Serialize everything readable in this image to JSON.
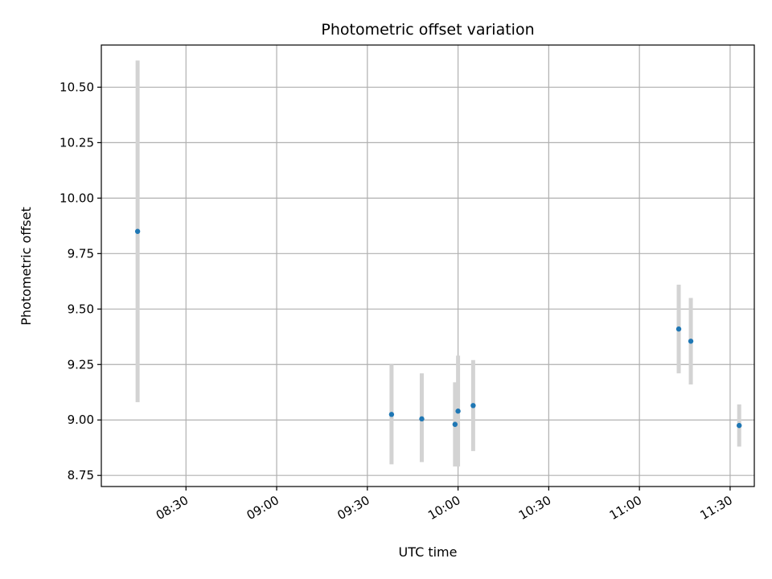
{
  "chart_data": {
    "type": "scatter",
    "title": "Photometric offset variation",
    "xlabel": "UTC time",
    "ylabel": "Photometric offset",
    "x_tick_labels": [
      "08:30",
      "09:00",
      "09:30",
      "10:00",
      "10:30",
      "11:00",
      "11:30"
    ],
    "y_tick_labels": [
      "8.75",
      "9.00",
      "9.25",
      "9.50",
      "9.75",
      "10.00",
      "10.25",
      "10.50"
    ],
    "y_ticks": [
      8.75,
      9.0,
      9.25,
      9.5,
      9.75,
      10.0,
      10.25,
      10.5
    ],
    "xlim": [
      "08:02",
      "11:38"
    ],
    "ylim": [
      8.7,
      10.69
    ],
    "grid": true,
    "points": [
      {
        "x": "08:14",
        "y": 9.85,
        "yerr_low": 9.08,
        "yerr_high": 10.62
      },
      {
        "x": "09:38",
        "y": 9.025,
        "yerr_low": 8.8,
        "yerr_high": 9.25
      },
      {
        "x": "09:48",
        "y": 9.005,
        "yerr_low": 8.81,
        "yerr_high": 9.21
      },
      {
        "x": "09:59",
        "y": 8.98,
        "yerr_low": 8.79,
        "yerr_high": 9.17
      },
      {
        "x": "10:00",
        "y": 9.04,
        "yerr_low": 8.79,
        "yerr_high": 9.29
      },
      {
        "x": "10:05",
        "y": 9.065,
        "yerr_low": 8.86,
        "yerr_high": 9.27
      },
      {
        "x": "11:13",
        "y": 9.41,
        "yerr_low": 9.21,
        "yerr_high": 9.61
      },
      {
        "x": "11:17",
        "y": 9.355,
        "yerr_low": 9.16,
        "yerr_high": 9.55
      },
      {
        "x": "11:33",
        "y": 8.975,
        "yerr_low": 8.88,
        "yerr_high": 9.07
      }
    ],
    "colors": {
      "marker": "#1f77b4",
      "errorbar": "#d3d3d3",
      "grid": "#b0b0b0",
      "axes": "#000000"
    }
  }
}
